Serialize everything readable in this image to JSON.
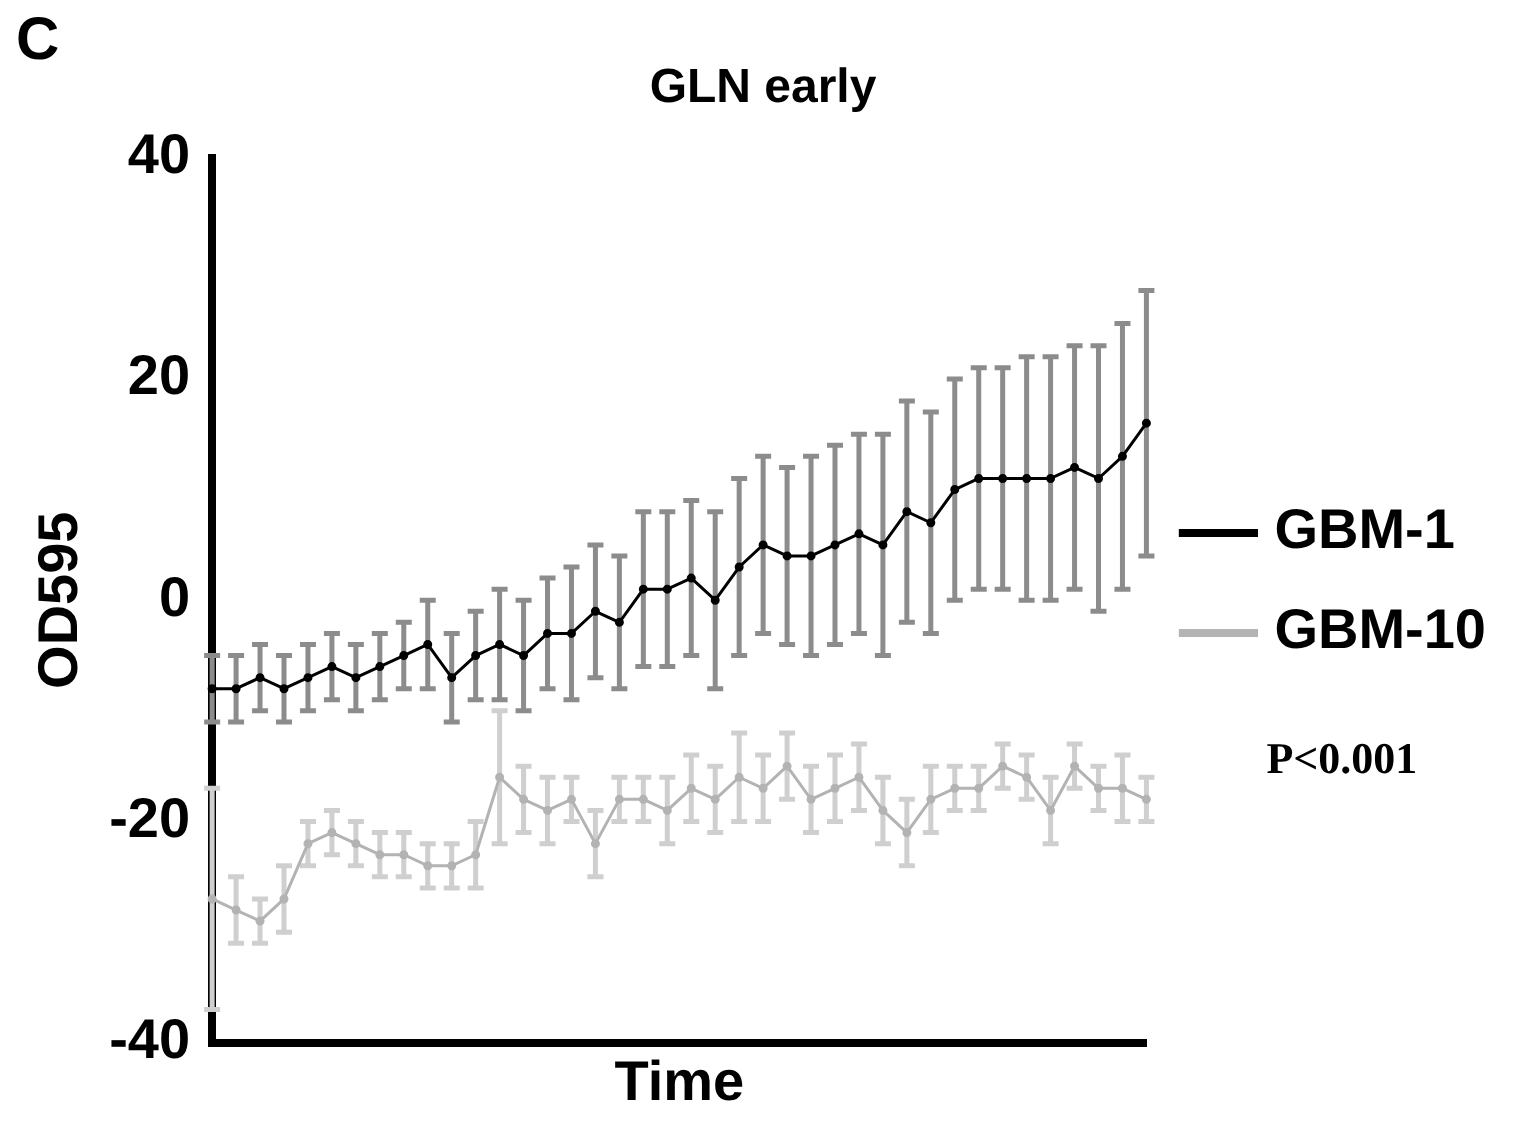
{
  "chart_data": {
    "type": "line",
    "title": "GLN early",
    "xlabel": "Time",
    "ylabel": "OD595",
    "categories": [
      null,
      null,
      null,
      null,
      null,
      null,
      null,
      null,
      null,
      null,
      null,
      null,
      null,
      null,
      null,
      null,
      null,
      null,
      null,
      null,
      null,
      null,
      null,
      null,
      null,
      null,
      null,
      null,
      null,
      null,
      null,
      null,
      null,
      null,
      null,
      null,
      null,
      null,
      null,
      null
    ],
    "series": [
      {
        "name": "GBM-1",
        "color": "#000000",
        "values": [
          -8,
          -8,
          -7,
          -8,
          -7,
          -6,
          -7,
          -6,
          -5,
          -4,
          -7,
          -5,
          -4,
          -5,
          -3,
          -3,
          -1,
          -2,
          1,
          1,
          2,
          0,
          3,
          5,
          4,
          4,
          5,
          6,
          5,
          8,
          7,
          10,
          11,
          11,
          11,
          11,
          12,
          11,
          13,
          16
        ],
        "errors": [
          3,
          3,
          3,
          3,
          3,
          3,
          3,
          3,
          3,
          4,
          4,
          4,
          5,
          5,
          5,
          6,
          6,
          6,
          7,
          7,
          7,
          8,
          8,
          8,
          8,
          9,
          9,
          9,
          10,
          10,
          10,
          10,
          10,
          10,
          11,
          11,
          11,
          12,
          12,
          12
        ]
      },
      {
        "name": "GBM-10",
        "color": "#b3b3b3",
        "values": [
          -27,
          -28,
          -29,
          -27,
          -22,
          -21,
          -22,
          -23,
          -23,
          -24,
          -24,
          -23,
          -16,
          -18,
          -19,
          -18,
          -22,
          -18,
          -18,
          -19,
          -17,
          -18,
          -16,
          -17,
          -15,
          -18,
          -17,
          -16,
          -19,
          -21,
          -18,
          -17,
          -17,
          -15,
          -16,
          -19,
          -15,
          -17,
          -17,
          -18
        ],
        "errors": [
          10,
          3,
          2,
          3,
          2,
          2,
          2,
          2,
          2,
          2,
          2,
          3,
          6,
          3,
          3,
          2,
          3,
          2,
          2,
          3,
          3,
          3,
          4,
          3,
          3,
          3,
          3,
          3,
          3,
          3,
          3,
          2,
          2,
          2,
          2,
          3,
          2,
          2,
          3,
          2
        ]
      }
    ],
    "ylim": [
      -40,
      40
    ],
    "yticks": [
      -40,
      -20,
      0,
      20,
      40
    ],
    "grid": false,
    "legend": "right",
    "marker": "circle",
    "line_style": "solid",
    "tick_labels": "y",
    "annotations": [
      "C",
      "P<0.001"
    ]
  }
}
